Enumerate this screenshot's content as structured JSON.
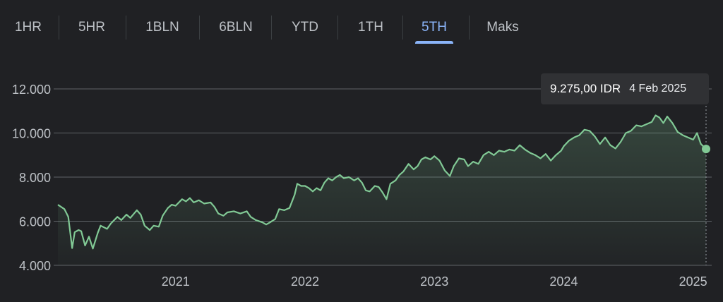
{
  "tabs": [
    {
      "label": "1HR",
      "active": false
    },
    {
      "label": "5HR",
      "active": false
    },
    {
      "label": "1BLN",
      "active": false
    },
    {
      "label": "6BLN",
      "active": false
    },
    {
      "label": "YTD",
      "active": false
    },
    {
      "label": "1TH",
      "active": false
    },
    {
      "label": "5TH",
      "active": true
    },
    {
      "label": "Maks",
      "active": false
    }
  ],
  "tooltip": {
    "price": "9.275,00 IDR",
    "date": "4 Feb 2025"
  },
  "colors": {
    "background": "#202124",
    "line": "#81c995",
    "grid": "#5f6368",
    "active_tab": "#8ab4f8",
    "tooltip_bg": "#303134"
  },
  "chart_data": {
    "type": "area",
    "currency": "IDR",
    "ylim": [
      4000,
      12000
    ],
    "yticks": [
      4000,
      6000,
      8000,
      10000,
      12000
    ],
    "ytick_labels": [
      "4.000",
      "6.000",
      "8.000",
      "10.000",
      "12.000"
    ],
    "xticks": [
      2021,
      2022,
      2023,
      2024,
      2025
    ],
    "xtick_labels": [
      "2021",
      "2022",
      "2023",
      "2024",
      "2025"
    ],
    "xlim": [
      2020.09,
      2025.1
    ],
    "grid": true,
    "series": [
      {
        "points": [
          [
            2020.09,
            6750
          ],
          [
            2020.14,
            6550
          ],
          [
            2020.17,
            6200
          ],
          [
            2020.2,
            4780
          ],
          [
            2020.22,
            5500
          ],
          [
            2020.25,
            5600
          ],
          [
            2020.27,
            5550
          ],
          [
            2020.3,
            4900
          ],
          [
            2020.33,
            5300
          ],
          [
            2020.36,
            4760
          ],
          [
            2020.4,
            5500
          ],
          [
            2020.42,
            5800
          ],
          [
            2020.47,
            5650
          ],
          [
            2020.5,
            5900
          ],
          [
            2020.55,
            6200
          ],
          [
            2020.58,
            6050
          ],
          [
            2020.62,
            6300
          ],
          [
            2020.65,
            6150
          ],
          [
            2020.7,
            6500
          ],
          [
            2020.73,
            6300
          ],
          [
            2020.76,
            5800
          ],
          [
            2020.8,
            5600
          ],
          [
            2020.83,
            5800
          ],
          [
            2020.87,
            5750
          ],
          [
            2020.9,
            6250
          ],
          [
            2020.94,
            6600
          ],
          [
            2020.97,
            6750
          ],
          [
            2021.0,
            6700
          ],
          [
            2021.05,
            7000
          ],
          [
            2021.08,
            6900
          ],
          [
            2021.11,
            7050
          ],
          [
            2021.14,
            6850
          ],
          [
            2021.18,
            6950
          ],
          [
            2021.22,
            6800
          ],
          [
            2021.27,
            6850
          ],
          [
            2021.3,
            6650
          ],
          [
            2021.33,
            6350
          ],
          [
            2021.37,
            6250
          ],
          [
            2021.4,
            6400
          ],
          [
            2021.45,
            6450
          ],
          [
            2021.5,
            6350
          ],
          [
            2021.55,
            6450
          ],
          [
            2021.58,
            6200
          ],
          [
            2021.62,
            6050
          ],
          [
            2021.67,
            5950
          ],
          [
            2021.7,
            5850
          ],
          [
            2021.73,
            5950
          ],
          [
            2021.77,
            6100
          ],
          [
            2021.8,
            6550
          ],
          [
            2021.84,
            6500
          ],
          [
            2021.88,
            6600
          ],
          [
            2021.92,
            7200
          ],
          [
            2021.94,
            7700
          ],
          [
            2021.97,
            7600
          ],
          [
            2022.0,
            7600
          ],
          [
            2022.03,
            7500
          ],
          [
            2022.06,
            7350
          ],
          [
            2022.09,
            7500
          ],
          [
            2022.12,
            7400
          ],
          [
            2022.15,
            7750
          ],
          [
            2022.18,
            7950
          ],
          [
            2022.21,
            7850
          ],
          [
            2022.24,
            8000
          ],
          [
            2022.27,
            8100
          ],
          [
            2022.3,
            7950
          ],
          [
            2022.34,
            8000
          ],
          [
            2022.38,
            7850
          ],
          [
            2022.41,
            7950
          ],
          [
            2022.44,
            7750
          ],
          [
            2022.47,
            7400
          ],
          [
            2022.5,
            7350
          ],
          [
            2022.54,
            7600
          ],
          [
            2022.57,
            7550
          ],
          [
            2022.6,
            7300
          ],
          [
            2022.63,
            7000
          ],
          [
            2022.66,
            7700
          ],
          [
            2022.7,
            7850
          ],
          [
            2022.73,
            8100
          ],
          [
            2022.76,
            8250
          ],
          [
            2022.8,
            8600
          ],
          [
            2022.84,
            8350
          ],
          [
            2022.87,
            8500
          ],
          [
            2022.9,
            8800
          ],
          [
            2022.93,
            8900
          ],
          [
            2022.97,
            8800
          ],
          [
            2023.0,
            8950
          ],
          [
            2023.04,
            8750
          ],
          [
            2023.08,
            8300
          ],
          [
            2023.12,
            8050
          ],
          [
            2023.15,
            8500
          ],
          [
            2023.19,
            8850
          ],
          [
            2023.23,
            8800
          ],
          [
            2023.26,
            8500
          ],
          [
            2023.3,
            8700
          ],
          [
            2023.34,
            8600
          ],
          [
            2023.38,
            9000
          ],
          [
            2023.42,
            9150
          ],
          [
            2023.46,
            9000
          ],
          [
            2023.5,
            9200
          ],
          [
            2023.54,
            9150
          ],
          [
            2023.58,
            9250
          ],
          [
            2023.62,
            9200
          ],
          [
            2023.66,
            9450
          ],
          [
            2023.7,
            9250
          ],
          [
            2023.74,
            9100
          ],
          [
            2023.78,
            9000
          ],
          [
            2023.82,
            8850
          ],
          [
            2023.86,
            9050
          ],
          [
            2023.9,
            8750
          ],
          [
            2023.94,
            9000
          ],
          [
            2023.98,
            9200
          ],
          [
            2024.0,
            9400
          ],
          [
            2024.04,
            9650
          ],
          [
            2024.08,
            9800
          ],
          [
            2024.12,
            9900
          ],
          [
            2024.16,
            10150
          ],
          [
            2024.2,
            10100
          ],
          [
            2024.24,
            9850
          ],
          [
            2024.28,
            9500
          ],
          [
            2024.32,
            9800
          ],
          [
            2024.36,
            9450
          ],
          [
            2024.4,
            9300
          ],
          [
            2024.44,
            9600
          ],
          [
            2024.48,
            10000
          ],
          [
            2024.52,
            10100
          ],
          [
            2024.56,
            10350
          ],
          [
            2024.6,
            10300
          ],
          [
            2024.64,
            10400
          ],
          [
            2024.68,
            10500
          ],
          [
            2024.71,
            10800
          ],
          [
            2024.74,
            10700
          ],
          [
            2024.77,
            10450
          ],
          [
            2024.8,
            10750
          ],
          [
            2024.84,
            10450
          ],
          [
            2024.88,
            10050
          ],
          [
            2024.92,
            9900
          ],
          [
            2024.96,
            9800
          ],
          [
            2025.0,
            9700
          ],
          [
            2025.03,
            10000
          ],
          [
            2025.06,
            9500
          ],
          [
            2025.1,
            9275
          ]
        ]
      }
    ],
    "highlight": {
      "x": 2025.1,
      "y": 9275
    }
  }
}
